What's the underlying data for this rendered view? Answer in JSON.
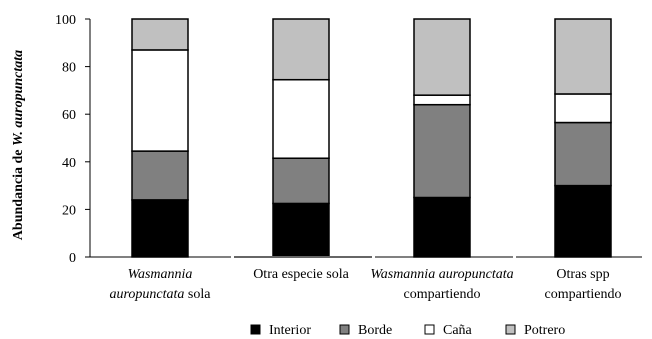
{
  "chart_data": {
    "type": "bar",
    "stacked": true,
    "ylabel_prefix": "Abundancia de ",
    "ylabel_species": "W. auropunctata",
    "xlabel": "",
    "ylim": [
      0,
      100
    ],
    "yticks": [
      0,
      20,
      40,
      60,
      80,
      100
    ],
    "grid": false,
    "legend_position": "bottom",
    "categories": [
      {
        "italic": "Wasmannia",
        "line2_italic": "auropunctata",
        "line2_rest": " sola"
      },
      {
        "italic": "",
        "line2_italic": "",
        "line2_rest": "Otra especie sola"
      },
      {
        "italic": "Wasmannia auropunctata",
        "line2_italic": "",
        "line2_rest": "compartiendo"
      },
      {
        "italic": "",
        "line1": "Otras spp",
        "line2_italic": "",
        "line2_rest": "compartiendo"
      }
    ],
    "series": [
      {
        "name": "Interior",
        "color": "#000000",
        "values": [
          24,
          22.5,
          25,
          30
        ]
      },
      {
        "name": "Borde",
        "color": "#808080",
        "values": [
          20.5,
          19,
          39,
          26.5
        ]
      },
      {
        "name": "Caña",
        "color": "#ffffff",
        "values": [
          42.5,
          33,
          4,
          12
        ]
      },
      {
        "name": "Potrero",
        "color": "#c0c0c0",
        "values": [
          13,
          25.5,
          32,
          31.5
        ]
      }
    ]
  }
}
